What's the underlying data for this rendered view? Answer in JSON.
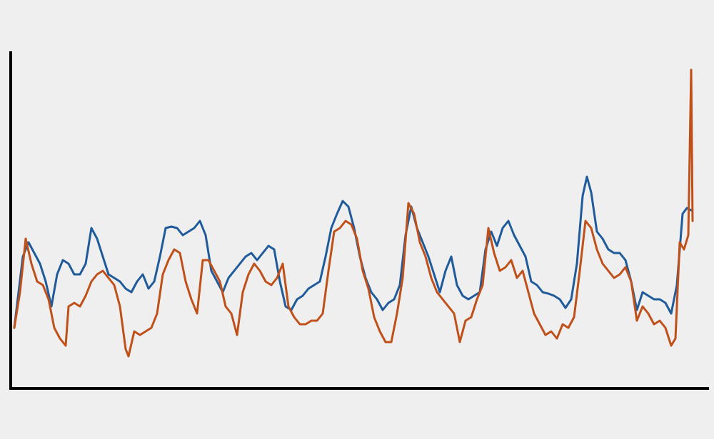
{
  "chart_data": {
    "type": "line",
    "xlim": [
      15,
      993
    ],
    "ylim": [
      0,
      473
    ],
    "line_width": 3,
    "series": [
      {
        "color": "#1f5a9a",
        "x": [
          20,
          32,
          40,
          48,
          56,
          64,
          72,
          80,
          88,
          96,
          104,
          112,
          120,
          128,
          136,
          144,
          152,
          160,
          168,
          176,
          184,
          192,
          200,
          208,
          216,
          224,
          232,
          240,
          248,
          256,
          264,
          272,
          280,
          288,
          296,
          304,
          312,
          320,
          328,
          336,
          344,
          352,
          360,
          368,
          376,
          384,
          392,
          400,
          408,
          416,
          424,
          432,
          440,
          448,
          456,
          464,
          472,
          480,
          488,
          496,
          504,
          512,
          520,
          528,
          536,
          544,
          552,
          560,
          568,
          576,
          584,
          592,
          600,
          608,
          616,
          624,
          632,
          640,
          648,
          656,
          664,
          672,
          680,
          688,
          696,
          704,
          712,
          720,
          728,
          736,
          744,
          752,
          760,
          768,
          776,
          784,
          792,
          800,
          808,
          816,
          822,
          828,
          836,
          844,
          852,
          860,
          868,
          876,
          884,
          892,
          900,
          908,
          916,
          924,
          932,
          940,
          948,
          956,
          962,
          968
        ],
        "values": [
          85,
          185,
          205,
          190,
          175,
          150,
          115,
          160,
          180,
          175,
          160,
          160,
          175,
          225,
          210,
          185,
          160,
          155,
          150,
          140,
          135,
          150,
          160,
          140,
          150,
          185,
          225,
          227,
          225,
          215,
          220,
          225,
          235,
          215,
          165,
          150,
          135,
          155,
          165,
          175,
          185,
          190,
          180,
          190,
          200,
          195,
          150,
          115,
          110,
          125,
          130,
          140,
          145,
          150,
          185,
          225,
          245,
          263,
          255,
          225,
          185,
          155,
          135,
          125,
          110,
          120,
          125,
          145,
          215,
          255,
          225,
          205,
          185,
          160,
          135,
          165,
          185,
          145,
          130,
          125,
          130,
          135,
          195,
          220,
          200,
          225,
          235,
          215,
          200,
          185,
          150,
          145,
          135,
          133,
          130,
          125,
          113,
          125,
          175,
          270,
          297,
          275,
          220,
          210,
          195,
          190,
          190,
          180,
          150,
          110,
          135,
          130,
          125,
          125,
          120,
          105,
          145,
          245,
          253,
          250
        ]
      },
      {
        "color": "#c0501a",
        "x": [
          20,
          28,
          36,
          44,
          52,
          60,
          68,
          76,
          84,
          92,
          96,
          104,
          112,
          120,
          128,
          136,
          144,
          152,
          160,
          168,
          176,
          180,
          188,
          196,
          204,
          212,
          220,
          228,
          236,
          244,
          252,
          260,
          268,
          276,
          284,
          292,
          300,
          308,
          316,
          324,
          332,
          340,
          348,
          356,
          364,
          372,
          380,
          388,
          396,
          404,
          412,
          420,
          428,
          436,
          444,
          452,
          460,
          468,
          476,
          484,
          492,
          500,
          508,
          516,
          524,
          532,
          540,
          548,
          556,
          564,
          572,
          580,
          588,
          596,
          604,
          612,
          620,
          628,
          636,
          644,
          652,
          660,
          668,
          676,
          684,
          692,
          700,
          708,
          716,
          724,
          732,
          740,
          748,
          756,
          764,
          772,
          780,
          788,
          796,
          804,
          812,
          820,
          828,
          836,
          844,
          852,
          860,
          868,
          876,
          884,
          892,
          900,
          908,
          916,
          924,
          932,
          940,
          946,
          952,
          958,
          964,
          968,
          970
        ],
        "values": [
          85,
          135,
          210,
          175,
          150,
          145,
          125,
          85,
          70,
          60,
          115,
          120,
          115,
          130,
          150,
          160,
          165,
          155,
          145,
          115,
          55,
          45,
          80,
          75,
          80,
          85,
          105,
          160,
          180,
          195,
          190,
          150,
          125,
          105,
          180,
          180,
          165,
          150,
          115,
          105,
          75,
          135,
          160,
          175,
          165,
          150,
          145,
          155,
          175,
          115,
          100,
          90,
          90,
          95,
          95,
          105,
          165,
          220,
          225,
          235,
          230,
          210,
          165,
          140,
          100,
          80,
          65,
          65,
          105,
          155,
          260,
          245,
          205,
          185,
          155,
          135,
          125,
          115,
          105,
          65,
          95,
          100,
          125,
          145,
          225,
          190,
          165,
          170,
          180,
          155,
          165,
          135,
          105,
          90,
          75,
          80,
          70,
          90,
          85,
          100,
          165,
          235,
          225,
          195,
          175,
          165,
          155,
          160,
          170,
          150,
          95,
          115,
          105,
          90,
          95,
          85,
          60,
          70,
          205,
          195,
          215,
          447,
          235
        ]
      }
    ]
  }
}
